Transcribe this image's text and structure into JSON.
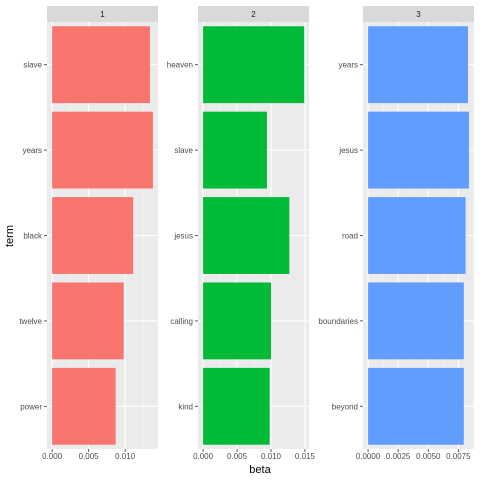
{
  "chart_data": {
    "type": "bar",
    "orientation": "horizontal",
    "facets": true,
    "xlabel": "beta",
    "ylabel": "term",
    "grid": true,
    "legend": "none",
    "panels": [
      {
        "title": "1",
        "color": "#F8766D",
        "categories": [
          "slave",
          "years",
          "black",
          "twelve",
          "power"
        ],
        "values": [
          0.0134,
          0.0138,
          0.0111,
          0.0098,
          0.0087
        ],
        "xlim": [
          -0.0007,
          0.0145
        ],
        "xticks": [
          0.0,
          0.005,
          0.01
        ],
        "xtick_labels": [
          "0.000",
          "0.005",
          "0.010"
        ]
      },
      {
        "title": "2",
        "color": "#00BA38",
        "categories": [
          "heaven",
          "slave",
          "jesus",
          "calling",
          "kind"
        ],
        "values": [
          0.0149,
          0.0094,
          0.0127,
          0.01,
          0.0098
        ],
        "xlim": [
          -0.00075,
          0.0156
        ],
        "xticks": [
          0.0,
          0.005,
          0.01,
          0.015
        ],
        "xtick_labels": [
          "0.000",
          "0.005",
          "0.010",
          "0.015"
        ]
      },
      {
        "title": "3",
        "color": "#619CFF",
        "categories": [
          "years",
          "jesus",
          "road",
          "boundaries",
          "beyond"
        ],
        "values": [
          0.0083,
          0.00838,
          0.0081,
          0.00795,
          0.00795
        ],
        "xlim": [
          -0.00042,
          0.0088
        ],
        "xticks": [
          0.0,
          0.0025,
          0.005,
          0.0075
        ],
        "xtick_labels": [
          "0.0000",
          "0.0025",
          "0.0050",
          "0.0075"
        ]
      }
    ]
  }
}
